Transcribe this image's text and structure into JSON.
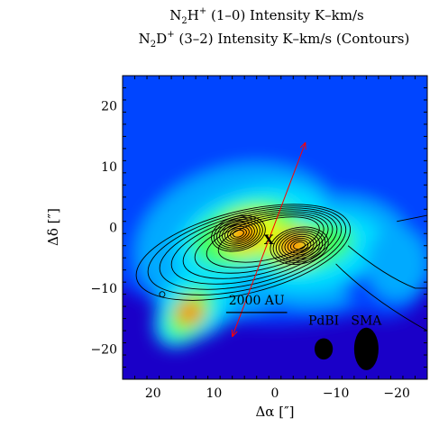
{
  "chart_data": {
    "type": "heatmap",
    "title_line1": {
      "base": "N",
      "sub": "2",
      "mid": "H",
      "sup": "+",
      "rest": " (1–0) Intensity K–km/s"
    },
    "title_line2": {
      "base": "N",
      "sub": "2",
      "mid": "D",
      "sup": "+",
      "rest": " (3–2) Intensity K–km/s (Contours)"
    },
    "xlabel": {
      "prefix": "Δα [",
      "unit": "″",
      "suffix": "]"
    },
    "ylabel": {
      "prefix": "Δδ [",
      "unit": "″",
      "suffix": "]"
    },
    "xlim": [
      25,
      -25
    ],
    "ylim": [
      -25,
      25
    ],
    "x_ticks": [
      20,
      10,
      0,
      -10,
      -20
    ],
    "y_ticks": [
      20,
      10,
      0,
      -10,
      -20
    ],
    "x_tick_labels": [
      "20",
      "10",
      "0",
      "−10",
      "−20"
    ],
    "y_tick_labels": [
      "20",
      "10",
      "0",
      "−10",
      "−20"
    ],
    "colormap": [
      "#1a00c8",
      "#0044ff",
      "#00aaff",
      "#00e0ff",
      "#40ff60",
      "#e0ff00",
      "#ff6a00"
    ],
    "peaks_n2hplus": [
      {
        "x": 5,
        "y": -1,
        "level": 1.0
      },
      {
        "x": -3,
        "y": -3,
        "level": 1.0
      },
      {
        "x": 14,
        "y": -14,
        "level": 0.75
      }
    ],
    "n2dplus_contour_centers": [
      {
        "x": 6,
        "y": -1
      },
      {
        "x": -4,
        "y": -3
      }
    ],
    "marker": {
      "label": "X",
      "x": 1,
      "y": -2
    },
    "outflow_arrow": {
      "from": {
        "x": 7,
        "y": -18
      },
      "to": {
        "x": -5,
        "y": 14
      },
      "color": "#ff0000"
    },
    "scale_bar": {
      "label": "2000 AU",
      "x_start": 8,
      "x_end": -2,
      "y": -14
    },
    "beams": [
      {
        "label": "PdBI",
        "x": -8,
        "y": -20,
        "bmaj": 3.5,
        "bmin": 3.0
      },
      {
        "label": "SMA",
        "x": -15,
        "y": -20,
        "bmaj": 7,
        "bmin": 4
      }
    ]
  }
}
